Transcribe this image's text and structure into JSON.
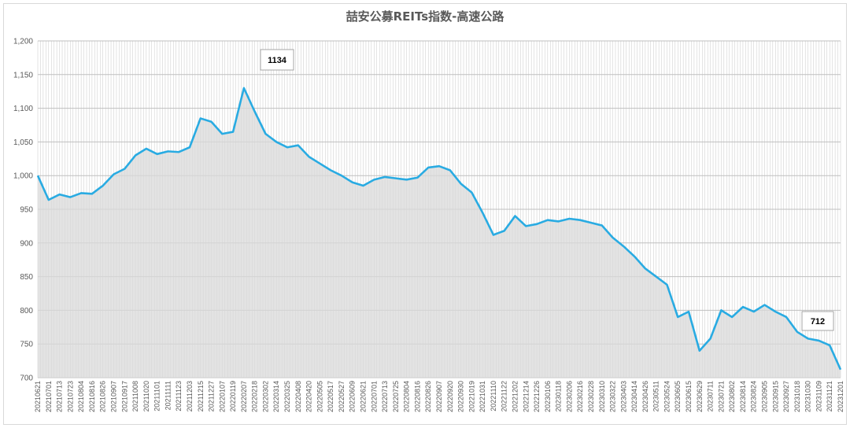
{
  "chart_data": {
    "type": "area",
    "title": "喆安公募REITs指数-高速公路",
    "xlabel": "",
    "ylabel": "",
    "ylim": [
      700,
      1200
    ],
    "yticks": [
      "700",
      "750",
      "800",
      "850",
      "900",
      "950",
      "1,000",
      "1,050",
      "1,100",
      "1,150",
      "1,200"
    ],
    "grid": true,
    "legend": "none",
    "colors": {
      "line": "#29abe2",
      "fill": "#d9d9d9",
      "grid": "#bfbfbf",
      "minor_grid": "#c8c8c8"
    },
    "x": [
      "20210621",
      "20210701",
      "20210713",
      "20210723",
      "20210804",
      "20210816",
      "20210826",
      "20210907",
      "20210917",
      "20211008",
      "20211020",
      "20211101",
      "20211111",
      "20211123",
      "20211203",
      "20211215",
      "20211227",
      "20220107",
      "20220119",
      "20220207",
      "20220218",
      "20220302",
      "20220314",
      "20220325",
      "20220408",
      "20220420",
      "20220505",
      "20220517",
      "20220527",
      "20220609",
      "20220621",
      "20220701",
      "20220713",
      "20220725",
      "20220804",
      "20220816",
      "20220826",
      "20220907",
      "20220920",
      "20220930",
      "20221019",
      "20221031",
      "20221110",
      "20221122",
      "20221202",
      "20221214",
      "20221226",
      "20230106",
      "20230118",
      "20230206",
      "20230216",
      "20230228",
      "20230310",
      "20230322",
      "20230403",
      "20230414",
      "20230426",
      "20230511",
      "20230524",
      "20230605",
      "20230615",
      "20230629",
      "20230711",
      "20230721",
      "20230802",
      "20230814",
      "20230824",
      "20230905",
      "20230915",
      "20230927",
      "20231018",
      "20231030",
      "20231109",
      "20231121",
      "20231201"
    ],
    "series": [
      {
        "values": [
          1000,
          964,
          972,
          968,
          974,
          973,
          985,
          1002,
          1010,
          1030,
          1040,
          1032,
          1036,
          1035,
          1042,
          1085,
          1080,
          1062,
          1065,
          1130,
          1095,
          1062,
          1050,
          1042,
          1045,
          1028,
          1018,
          1008,
          1000,
          990,
          985,
          994,
          998,
          996,
          994,
          997,
          1012,
          1014,
          1008,
          988,
          975,
          945,
          912,
          918,
          940,
          925,
          928,
          934,
          932,
          936,
          934,
          930,
          926,
          908,
          895,
          880,
          862,
          850,
          838,
          790,
          798,
          740,
          758,
          800,
          790,
          805,
          798,
          808,
          798,
          790,
          768,
          758,
          755,
          748,
          712
        ]
      }
    ],
    "annotations": [
      {
        "label": "1134",
        "x": "20220207",
        "y": 1134
      },
      {
        "label": "712",
        "x": "20231201",
        "y": 712
      }
    ]
  }
}
